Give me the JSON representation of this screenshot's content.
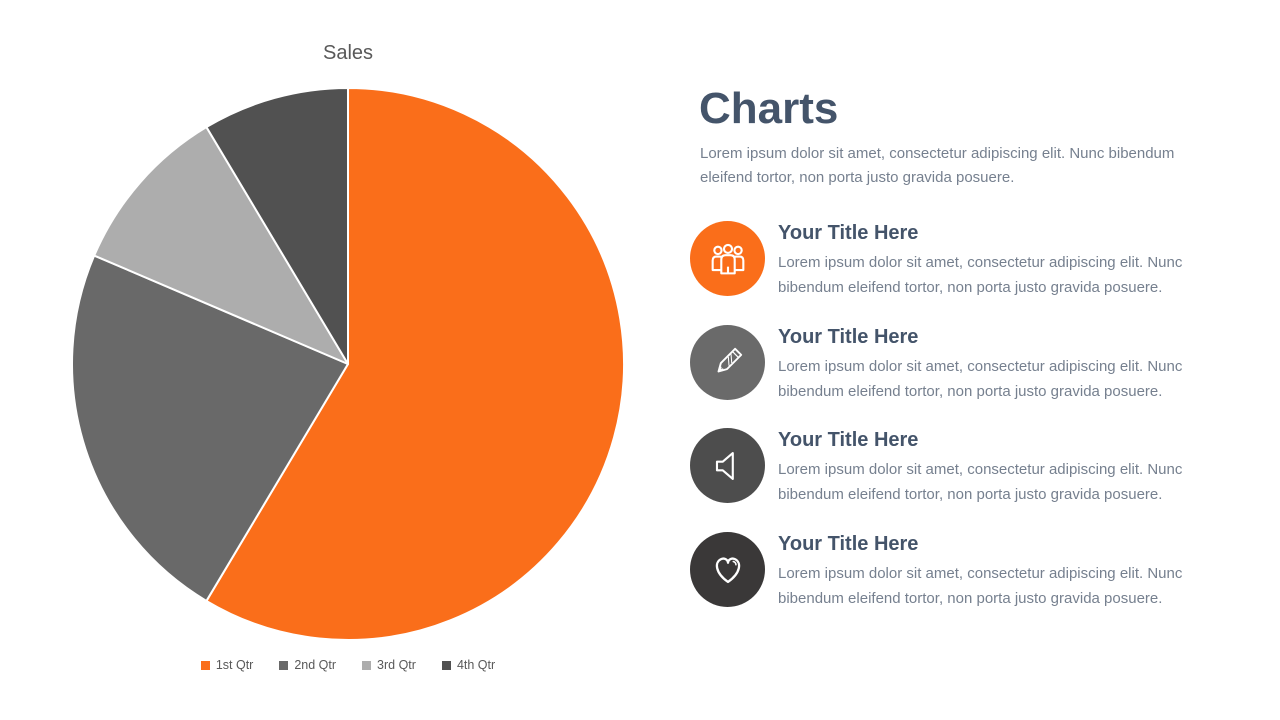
{
  "slide": {
    "background": "#ffffff"
  },
  "chart_data": {
    "type": "pie",
    "title": "Sales",
    "title_color": "#595959",
    "categories": [
      "1st Qtr",
      "2nd Qtr",
      "3rd Qtr",
      "4th Qtr"
    ],
    "values": [
      8.2,
      3.2,
      1.4,
      1.2
    ],
    "colors": [
      "#FA6E1A",
      "#696969",
      "#ADADAD",
      "#515151"
    ],
    "legend_position": "bottom",
    "legend_text_color": "#595959",
    "start_angle_deg": 0,
    "direction": "clockwise",
    "slice_separator_color": "#ffffff"
  },
  "content": {
    "title": "Charts",
    "title_color": "#44546A",
    "subtitle": "Lorem ipsum dolor sit amet, consectetur adipiscing elit. Nunc bibendum eleifend tortor, non porta justo gravida posuere.",
    "body_text_color": "#76808F",
    "items": [
      {
        "icon": "people-icon",
        "icon_color": "#FA6E1A",
        "title": "Your Title Here",
        "body": "Lorem ipsum dolor sit amet, consectetur adipiscing elit. Nunc bibendum eleifend tortor, non porta justo gravida posuere."
      },
      {
        "icon": "pencil-icon",
        "icon_color": "#6A6A6A",
        "title": "Your Title Here",
        "body": "Lorem ipsum dolor sit amet, consectetur adipiscing elit. Nunc bibendum eleifend tortor, non porta justo gravida posuere."
      },
      {
        "icon": "speaker-icon",
        "icon_color": "#4D4D4D",
        "title": "Your Title Here",
        "body": "Lorem ipsum dolor sit amet, consectetur adipiscing elit. Nunc bibendum eleifend tortor, non porta justo gravida posuere."
      },
      {
        "icon": "heart-icon",
        "icon_color": "#3A3838",
        "title": "Your Title Here",
        "body": "Lorem ipsum dolor sit amet, consectetur adipiscing elit. Nunc bibendum eleifend tortor, non porta justo gravida posuere."
      }
    ]
  }
}
